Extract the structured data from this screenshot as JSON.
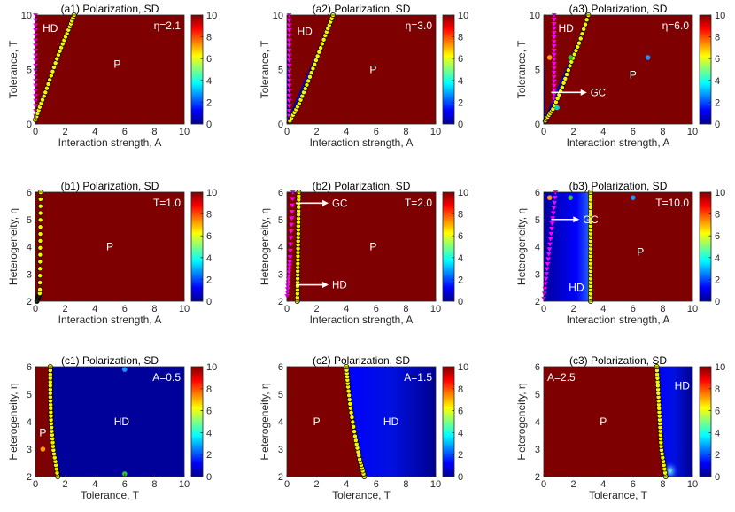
{
  "colorbar": {
    "ticks": [
      "0",
      "2",
      "4",
      "6",
      "8",
      "10"
    ],
    "colors": [
      "#00008f",
      "#0000ff",
      "#0080ff",
      "#00ffff",
      "#80ff80",
      "#ffff00",
      "#ff8000",
      "#ff0000",
      "#800000"
    ]
  },
  "colors": {
    "P": "#7f0000",
    "HD": "#00009a",
    "yellow": "#f5f500",
    "magenta": "#ff00ff"
  },
  "chart_data": [
    {
      "id": "a1",
      "type": "heatmap",
      "title": "(a1) Polarization, SD",
      "xlabel": "Interaction strength, A",
      "ylabel": "Tolerance, T",
      "xlim": [
        0,
        10
      ],
      "ylim": [
        0,
        10
      ],
      "xticks": [
        "0",
        "2",
        "4",
        "6",
        "8",
        "10"
      ],
      "yticks": [
        "0",
        "5",
        "10"
      ],
      "param": "η=2.1",
      "param_pos": "top-right",
      "yellow_boundary": [
        [
          0.0,
          0.4
        ],
        [
          0.3,
          1.6
        ],
        [
          0.7,
          3
        ],
        [
          1.1,
          4.6
        ],
        [
          1.5,
          6.2
        ],
        [
          1.9,
          7.6
        ],
        [
          2.3,
          8.9
        ],
        [
          2.6,
          10
        ]
      ],
      "magenta_boundary": [
        [
          0,
          0.3
        ],
        [
          0,
          10
        ]
      ],
      "regions": [
        {
          "label": "HD",
          "x": 1.0,
          "y": 8.8
        },
        {
          "label": "P",
          "x": 5.5,
          "y": 5.5
        }
      ],
      "arrows": [],
      "dots": []
    },
    {
      "id": "a2",
      "type": "heatmap",
      "title": "(a2) Polarization, SD",
      "xlabel": "Interaction strength, A",
      "ylabel": "Tolerance, T",
      "xlim": [
        0,
        10
      ],
      "ylim": [
        0,
        10
      ],
      "xticks": [
        "0",
        "2",
        "4",
        "6",
        "8",
        "10"
      ],
      "yticks": [
        "0",
        "5",
        "10"
      ],
      "param": "η=3.0",
      "param_pos": "top-right",
      "yellow_boundary": [
        [
          0.2,
          0.3
        ],
        [
          0.8,
          1.8
        ],
        [
          1.4,
          3.8
        ],
        [
          2.0,
          6.0
        ],
        [
          2.6,
          8.2
        ],
        [
          3.1,
          10
        ]
      ],
      "magenta_boundary": [
        [
          0.15,
          0.3
        ],
        [
          0.15,
          10
        ]
      ],
      "regions": [
        {
          "label": "HD",
          "x": 1.2,
          "y": 8.5
        },
        {
          "label": "P",
          "x": 5.8,
          "y": 5.0
        }
      ],
      "arrows": [],
      "dots": []
    },
    {
      "id": "a3",
      "type": "heatmap",
      "title": "(a3) Polarization, SD",
      "xlabel": "Interaction strength, A",
      "ylabel": "Tolerance, T",
      "xlim": [
        0,
        10
      ],
      "ylim": [
        0,
        10
      ],
      "xticks": [
        "0",
        "2",
        "4",
        "6",
        "8",
        "10"
      ],
      "yticks": [
        "0",
        "5",
        "10"
      ],
      "param": "η=6.0",
      "param_pos": "top-right",
      "yellow_boundary": [
        [
          0.1,
          0.3
        ],
        [
          0.6,
          1.3
        ],
        [
          1.2,
          3.2
        ],
        [
          1.8,
          5.5
        ],
        [
          2.4,
          7.5
        ],
        [
          3.0,
          10
        ]
      ],
      "magenta_boundary": [
        [
          0.7,
          1.5
        ],
        [
          0.7,
          10
        ]
      ],
      "regions": [
        {
          "label": "HD",
          "x": 1.5,
          "y": 8.8
        },
        {
          "label": "P",
          "x": 6.0,
          "y": 4.5
        }
      ],
      "arrows": [
        {
          "label": "GC",
          "x0": 0.5,
          "y0": 2.9,
          "x1": 2.9,
          "y1": 2.9
        }
      ],
      "dots": [
        {
          "x": 0.4,
          "y": 6.1,
          "color": "#ff9900"
        },
        {
          "x": 1.8,
          "y": 6.1,
          "color": "#30c030"
        },
        {
          "x": 7.0,
          "y": 6.1,
          "color": "#2090ff"
        },
        {
          "x": 0.9,
          "y": 1.5,
          "color": "#00d0d0"
        }
      ]
    },
    {
      "id": "b1",
      "type": "heatmap",
      "title": "(b1) Polarization, SD",
      "xlabel": "Interaction strength, A",
      "ylabel": "Heterogeneity, η",
      "xlim": [
        0,
        10
      ],
      "ylim": [
        2,
        6
      ],
      "xticks": [
        "0",
        "2",
        "4",
        "6",
        "8",
        "10"
      ],
      "yticks": [
        "2",
        "3",
        "4",
        "5",
        "6"
      ],
      "param": "T=1.0",
      "param_pos": "top-right",
      "yellow_boundary": [
        [
          0.1,
          2
        ],
        [
          0.3,
          2.3
        ],
        [
          0.35,
          6
        ]
      ],
      "magenta_boundary": [],
      "regions": [
        {
          "label": "P",
          "x": 5.0,
          "y": 4.0
        }
      ],
      "arrows": [],
      "dots": []
    },
    {
      "id": "b2",
      "type": "heatmap",
      "title": "(b2) Polarization, SD",
      "xlabel": "Interaction strength, A",
      "ylabel": "Heterogeneity, η",
      "xlim": [
        0,
        10
      ],
      "ylim": [
        2,
        6
      ],
      "xticks": [
        "0",
        "2",
        "4",
        "6",
        "8",
        "10"
      ],
      "yticks": [
        "2",
        "3",
        "4",
        "5",
        "6"
      ],
      "param": "T=2.0",
      "param_pos": "top-right",
      "yellow_boundary": [
        [
          0.7,
          2
        ],
        [
          0.75,
          4
        ],
        [
          0.8,
          6
        ]
      ],
      "magenta_boundary": [
        [
          0.0,
          2.2
        ],
        [
          0.2,
          3.5
        ],
        [
          0.4,
          6
        ]
      ],
      "regions": [
        {
          "label": "P",
          "x": 5.8,
          "y": 4.0
        }
      ],
      "arrows": [
        {
          "label": "GC",
          "x0": 0.6,
          "y0": 5.6,
          "x1": 2.8,
          "y1": 5.6
        },
        {
          "label": "HD",
          "x0": 0.6,
          "y0": 2.6,
          "x1": 2.8,
          "y1": 2.6
        }
      ],
      "dots": []
    },
    {
      "id": "b3",
      "type": "heatmap",
      "title": "(b3) Polarization, SD",
      "xlabel": "Interaction strength, A",
      "ylabel": "Heterogeneity, η",
      "xlim": [
        0,
        10
      ],
      "ylim": [
        2,
        6
      ],
      "xticks": [
        "0",
        "2",
        "4",
        "6",
        "8",
        "10"
      ],
      "yticks": [
        "2",
        "3",
        "4",
        "5",
        "6"
      ],
      "param": "T=10.0",
      "param_pos": "top-right",
      "yellow_boundary": [
        [
          3.15,
          2
        ],
        [
          3.15,
          6
        ]
      ],
      "magenta_boundary": [
        [
          0.0,
          2.1
        ],
        [
          0.4,
          4
        ],
        [
          0.8,
          6
        ]
      ],
      "regions": [
        {
          "label": "HD",
          "x": 2.2,
          "y": 2.5
        },
        {
          "label": "P",
          "x": 6.5,
          "y": 3.8
        }
      ],
      "arrows": [
        {
          "label": "GC",
          "x0": 0.5,
          "y0": 5.0,
          "x1": 2.4,
          "y1": 5.0
        }
      ],
      "dots": [
        {
          "x": 0.4,
          "y": 5.8,
          "color": "#ff9900"
        },
        {
          "x": 1.8,
          "y": 5.8,
          "color": "#30c030"
        },
        {
          "x": 6.0,
          "y": 5.8,
          "color": "#2090ff"
        }
      ]
    },
    {
      "id": "c1",
      "type": "heatmap",
      "title": "(c1) Polarization, SD",
      "xlabel": "Tolerance, T",
      "ylabel": "Heterogeneity, η",
      "xlim": [
        0,
        10
      ],
      "ylim": [
        2,
        6
      ],
      "xticks": [
        "0",
        "2",
        "4",
        "6",
        "8",
        "10"
      ],
      "yticks": [
        "2",
        "3",
        "4",
        "5",
        "6"
      ],
      "param": "A=0.5",
      "param_pos": "top-right",
      "yellow_boundary": [
        [
          1.5,
          2
        ],
        [
          1.2,
          3
        ],
        [
          1.05,
          4
        ],
        [
          1.0,
          5
        ],
        [
          1.0,
          6
        ]
      ],
      "magenta_boundary": [],
      "regions": [
        {
          "label": "P",
          "x": 0.5,
          "y": 3.6
        },
        {
          "label": "HD",
          "x": 5.8,
          "y": 4.0
        }
      ],
      "arrows": [],
      "dots": [
        {
          "x": 6.0,
          "y": 5.9,
          "color": "#2090ff"
        },
        {
          "x": 6.0,
          "y": 2.1,
          "color": "#30c030"
        },
        {
          "x": 0.5,
          "y": 3.0,
          "color": "#ff9900"
        }
      ]
    },
    {
      "id": "c2",
      "type": "heatmap",
      "title": "(c2) Polarization, SD",
      "xlabel": "Tolerance, T",
      "ylabel": "Heterogeneity, η",
      "xlim": [
        0,
        10
      ],
      "ylim": [
        2,
        6
      ],
      "xticks": [
        "0",
        "2",
        "4",
        "6",
        "8",
        "10"
      ],
      "yticks": [
        "2",
        "3",
        "4",
        "5",
        "6"
      ],
      "param": "A=1.5",
      "param_pos": "top-right",
      "yellow_boundary": [
        [
          5.2,
          2
        ],
        [
          4.9,
          2.6
        ],
        [
          4.6,
          3.4
        ],
        [
          4.3,
          4.4
        ],
        [
          4.1,
          5.3
        ],
        [
          4.0,
          6
        ]
      ],
      "magenta_boundary": [],
      "regions": [
        {
          "label": "P",
          "x": 2.0,
          "y": 4.0
        },
        {
          "label": "HD",
          "x": 7.0,
          "y": 4.0
        }
      ],
      "arrows": [],
      "dots": []
    },
    {
      "id": "c3",
      "type": "heatmap",
      "title": "(c3) Polarization, SD",
      "xlabel": "Tolerance, T",
      "ylabel": "Heterogeneity, η",
      "xlim": [
        0,
        10
      ],
      "ylim": [
        2,
        6
      ],
      "xticks": [
        "0",
        "2",
        "4",
        "6",
        "8",
        "10"
      ],
      "yticks": [
        "2",
        "3",
        "4",
        "5",
        "6"
      ],
      "param": "A=2.5",
      "param_pos": "top-left",
      "yellow_boundary": [
        [
          8.2,
          2
        ],
        [
          7.9,
          3
        ],
        [
          7.8,
          4
        ],
        [
          7.7,
          5
        ],
        [
          7.6,
          6
        ]
      ],
      "magenta_boundary": [],
      "regions": [
        {
          "label": "P",
          "x": 4.0,
          "y": 4.0
        },
        {
          "label": "HD",
          "x": 9.3,
          "y": 5.3
        }
      ],
      "arrows": [],
      "dots": []
    }
  ]
}
